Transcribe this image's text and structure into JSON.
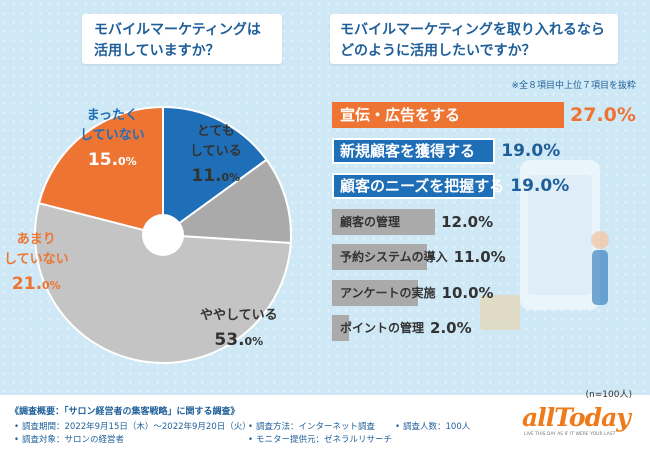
{
  "titles": {
    "left_line1": "モバイルマーケティングは",
    "left_line2": "活用していますか？",
    "right_line1": "モバイルマーケティングを取り入れるなら",
    "right_line2": "どのように活用したいですか？"
  },
  "note_top": "※全８項目中上位７項目を抜粋",
  "n_note": "(n=100人)",
  "colors": {
    "orange": "#ee7434",
    "blue": "#1f6fb8",
    "gray": "#aaaaaa",
    "lightgray": "#c4c4c4",
    "navy": "#1f5f99"
  },
  "chart_data": [
    {
      "type": "pie",
      "title": "モバイルマーケティングは活用していますか？",
      "slices": [
        {
          "label_line1": "まったく",
          "label_line2": "していない",
          "value": 15.0,
          "value_text": "15.",
          "decimal_text": "0%"
        },
        {
          "label_line1": "とても",
          "label_line2": "している",
          "value": 11.0,
          "value_text": "11.",
          "decimal_text": "0%"
        },
        {
          "label_line1": "",
          "label_line2": "ややしている",
          "value": 53.0,
          "value_text": "53.",
          "decimal_text": "0%"
        },
        {
          "label_line1": "あまり",
          "label_line2": "していない",
          "value": 21.0,
          "value_text": "21.",
          "decimal_text": "0%"
        }
      ]
    },
    {
      "type": "bar",
      "title": "モバイルマーケティングを取り入れるならどのように活用したいですか？",
      "categories": [
        "宣伝・広告をする",
        "新規顧客を獲得する",
        "顧客のニーズを把握する",
        "顧客の管理",
        "予約システムの導入",
        "アンケートの実施",
        "ポイントの管理"
      ],
      "values": [
        27.0,
        19.0,
        19.0,
        12.0,
        11.0,
        10.0,
        2.0
      ],
      "value_texts": [
        "27.0%",
        "19.0%",
        "19.0%",
        "12.0%",
        "11.0%",
        "10.0%",
        "2.0%"
      ]
    }
  ],
  "footer": {
    "heading": "《調査概要：「サロン経営者の集客戦略」に関する調査》",
    "period": "調査期間：2022年9月15日（木）〜2022年9月20日（火）",
    "method": "調査方法：インターネット調査",
    "count": "調査人数：100人",
    "target": "調査対象：サロンの経営者",
    "provider": "モニター提供元：ゼネラルリサーチ"
  },
  "logo": {
    "name": "allToday",
    "tagline": "LIVE THIS DAY AS IF IT WERE YOUR LAST"
  }
}
